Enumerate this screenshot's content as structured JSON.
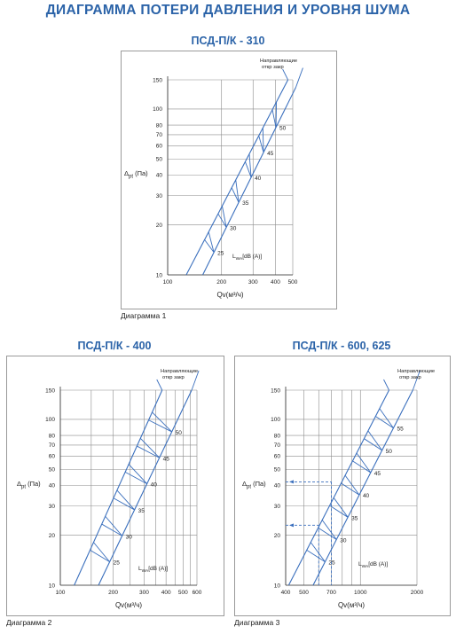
{
  "page_title": "ДИАГРАММА ПОТЕРИ ДАВЛЕНИЯ И УРОВНЯ ШУМА",
  "colors": {
    "accent": "#2b63a8",
    "line": "#3a6fbd",
    "grid": "#8c8c8c"
  },
  "charts": [
    {
      "title": "ПСД-П/К - 310",
      "caption": "Диаграмма 1",
      "xlabel": "Qv(м³/ч)",
      "ylabel_main": "Δ",
      "ylabel_sub": "pt",
      "ylabel_unit": " (Па)",
      "noise_label_main": "L",
      "noise_label_sub": "WA",
      "noise_label_unit": "[dB (A)]",
      "damper_label_line1": "Направляющие",
      "damper_label_line2": "откр     закр",
      "x_ticks": [
        "100",
        "200",
        "300",
        "400",
        "500"
      ],
      "y_ticks": [
        "10",
        "20",
        "30",
        "40",
        "50",
        "60",
        "70",
        "80",
        "100",
        "150"
      ],
      "noise_values": [
        "25",
        "30",
        "35",
        "40",
        "45",
        "50"
      ]
    },
    {
      "title": "ПСД-П/К - 400",
      "caption": "Диаграмма 2",
      "xlabel": "Qv(м³/ч)",
      "ylabel_main": "Δ",
      "ylabel_sub": "pt",
      "ylabel_unit": " (Па)",
      "noise_label_main": "L",
      "noise_label_sub": "WA",
      "noise_label_unit": "[dB (A)]",
      "damper_label_line1": "Направляющие",
      "damper_label_line2": "откр     закр",
      "x_ticks": [
        "100",
        "200",
        "300",
        "400",
        "500",
        "600"
      ],
      "y_ticks": [
        "10",
        "20",
        "30",
        "40",
        "50",
        "60",
        "70",
        "80",
        "100",
        "150"
      ],
      "noise_values": [
        "25",
        "30",
        "35",
        "40",
        "45",
        "50"
      ]
    },
    {
      "title": "ПСД-П/К - 600, 625",
      "caption": "Диаграмма 3",
      "xlabel": "Qv(м³/ч)",
      "ylabel_main": "Δ",
      "ylabel_sub": "pt",
      "ylabel_unit": " (Па)",
      "noise_label_main": "L",
      "noise_label_sub": "WA",
      "noise_label_unit": "[dB (A)]",
      "damper_label_line1": "Направляющие",
      "damper_label_line2": "откр     закр",
      "x_ticks": [
        "400",
        "500",
        "700",
        "1000",
        "2000"
      ],
      "y_ticks": [
        "10",
        "20",
        "30",
        "40",
        "50",
        "60",
        "70",
        "80",
        "100",
        "150"
      ],
      "noise_values": [
        "25",
        "30",
        "35",
        "40",
        "45",
        "50",
        "55"
      ]
    }
  ],
  "chart_data": [
    {
      "type": "line",
      "title": "ПСД-П/К - 310",
      "xlabel": "Qv(м³/ч)",
      "ylabel": "Δpt (Па)",
      "x_scale": "log",
      "y_scale": "log",
      "xlim": [
        100,
        500
      ],
      "ylim": [
        10,
        150
      ],
      "grid": true,
      "series": [
        {
          "name": "откр",
          "x": [
            127,
            470
          ],
          "y": [
            10,
            150
          ]
        },
        {
          "name": "закр",
          "x": [
            157,
            520
          ],
          "y": [
            10,
            135
          ]
        }
      ],
      "noise_levels_dBA": [
        25,
        30,
        35,
        40,
        45,
        50
      ]
    },
    {
      "type": "line",
      "title": "ПСД-П/К - 400",
      "xlabel": "Qv(м³/ч)",
      "ylabel": "Δpt (Па)",
      "x_scale": "log",
      "y_scale": "log",
      "xlim": [
        100,
        600
      ],
      "ylim": [
        10,
        150
      ],
      "grid": true,
      "series": [
        {
          "name": "откр",
          "x": [
            120,
            380
          ],
          "y": [
            10,
            150
          ]
        },
        {
          "name": "закр",
          "x": [
            165,
            560
          ],
          "y": [
            10,
            150
          ]
        }
      ],
      "noise_levels_dBA": [
        25,
        30,
        35,
        40,
        45,
        50
      ]
    },
    {
      "type": "line",
      "title": "ПСД-П/К - 600, 625",
      "xlabel": "Qv(м³/ч)",
      "ylabel": "Δpt (Па)",
      "x_scale": "log",
      "y_scale": "log",
      "xlim": [
        400,
        2000
      ],
      "ylim": [
        10,
        150
      ],
      "grid": true,
      "series": [
        {
          "name": "откр",
          "x": [
            415,
            1420
          ],
          "y": [
            10,
            150
          ]
        },
        {
          "name": "закр",
          "x": [
            560,
            1900
          ],
          "y": [
            10,
            150
          ]
        }
      ],
      "noise_levels_dBA": [
        25,
        30,
        35,
        40,
        45,
        50,
        55
      ],
      "annotations": [
        {
          "x": 700,
          "y": 42
        },
        {
          "x": 600,
          "y": 23
        }
      ]
    }
  ]
}
